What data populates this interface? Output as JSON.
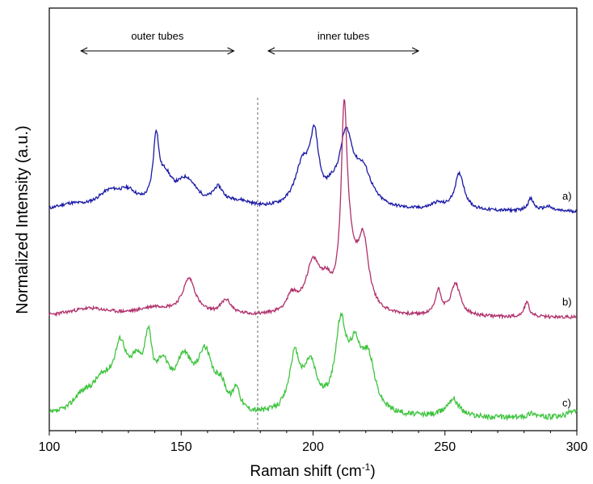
{
  "chart_data": {
    "type": "line",
    "xlabel": "Raman shift (cm",
    "xlabel_sup": "-1",
    "xlabel_close": ")",
    "ylabel": "Normalized Intensity (a.u.)",
    "xlim": [
      100,
      300
    ],
    "xticks": [
      "100",
      "150",
      "200",
      "250",
      "300"
    ],
    "y_ticks_shown": false,
    "grid": false,
    "legend": "none",
    "annotations": [
      {
        "text": "outer tubes",
        "x_from": 112,
        "x_to": 170
      },
      {
        "text": "inner tubes",
        "x_from": 183,
        "x_to": 240
      }
    ],
    "vline": {
      "x": 179,
      "style": "dashed",
      "color": "#808080"
    },
    "series": [
      {
        "label": "a)",
        "color": "#1a1aa6",
        "noise": 0.018,
        "seed": 11,
        "peaks": [
          [
            108,
            0.06,
            6
          ],
          [
            123,
            0.2,
            6
          ],
          [
            130,
            0.15,
            4
          ],
          [
            140.5,
            0.74,
            1.3
          ],
          [
            144,
            0.3,
            3
          ],
          [
            152,
            0.33,
            5
          ],
          [
            164,
            0.2,
            2.5
          ],
          [
            172,
            0.08,
            6
          ],
          [
            196,
            0.48,
            3.5
          ],
          [
            200.5,
            0.74,
            2
          ],
          [
            207,
            0.1,
            2
          ],
          [
            212.5,
            0.82,
            3.2
          ],
          [
            219,
            0.4,
            4
          ],
          [
            247,
            0.07,
            3
          ],
          [
            255.5,
            0.43,
            2.2
          ],
          [
            282.5,
            0.14,
            1.4
          ],
          [
            289,
            0.05,
            2
          ]
        ]
      },
      {
        "label": "b)",
        "color": "#b0306b",
        "noise": 0.01,
        "seed": 23,
        "peaks": [
          [
            115,
            0.05,
            10
          ],
          [
            140,
            0.05,
            8
          ],
          [
            153,
            0.22,
            3
          ],
          [
            167,
            0.09,
            2.5
          ],
          [
            192,
            0.1,
            2.5
          ],
          [
            200,
            0.3,
            3.5
          ],
          [
            205,
            0.12,
            2.5
          ],
          [
            211.8,
            1.1,
            1.4
          ],
          [
            214,
            0.25,
            3
          ],
          [
            219,
            0.42,
            2.5
          ],
          [
            247.5,
            0.15,
            1.4
          ],
          [
            254,
            0.2,
            2.2
          ],
          [
            281,
            0.09,
            1.2
          ]
        ]
      },
      {
        "label": "c)",
        "color": "#3ec43e",
        "noise": 0.022,
        "seed": 37,
        "peaks": [
          [
            112,
            0.1,
            4
          ],
          [
            120,
            0.25,
            6
          ],
          [
            127,
            0.45,
            3
          ],
          [
            133,
            0.3,
            3
          ],
          [
            137.5,
            0.48,
            1.8
          ],
          [
            143,
            0.32,
            3
          ],
          [
            151,
            0.4,
            4
          ],
          [
            159,
            0.45,
            3.5
          ],
          [
            165,
            0.18,
            2.5
          ],
          [
            171,
            0.18,
            1.5
          ],
          [
            193,
            0.45,
            2.5
          ],
          [
            199,
            0.38,
            3
          ],
          [
            210.5,
            0.68,
            2.6
          ],
          [
            216,
            0.45,
            3
          ],
          [
            221,
            0.4,
            3
          ],
          [
            253,
            0.15,
            3
          ],
          [
            283,
            0.04,
            2
          ],
          [
            299,
            0.06,
            3
          ]
        ]
      }
    ]
  }
}
